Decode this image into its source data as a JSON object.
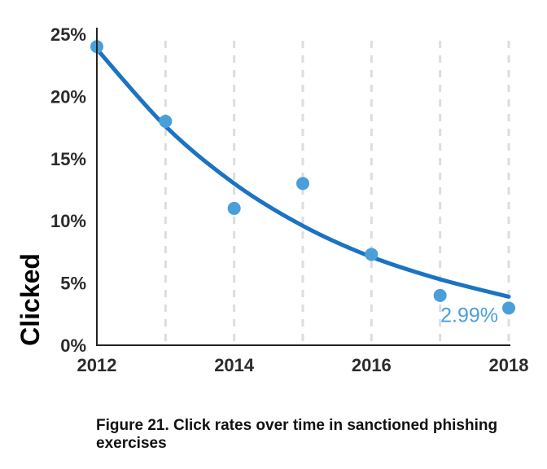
{
  "chart_data": {
    "type": "scatter",
    "x": [
      2012,
      2013,
      2014,
      2015,
      2016,
      2017,
      2018
    ],
    "y": [
      24.0,
      18.0,
      11.0,
      13.0,
      7.3,
      4.0,
      2.99
    ],
    "trendline": {
      "kind": "exponential",
      "x": [
        2012,
        2013,
        2014,
        2015,
        2016,
        2017,
        2018
      ],
      "y": [
        23.8,
        17.6,
        13.0,
        9.6,
        7.1,
        5.3,
        3.9
      ]
    },
    "xlabel": "",
    "ylabel": "Clicked",
    "xlim": [
      2012,
      2018
    ],
    "ylim": [
      0,
      25
    ],
    "xticks": [
      2012,
      2014,
      2016,
      2018
    ],
    "xtick_labels": [
      "2012",
      "2014",
      "2016",
      "2018"
    ],
    "yticks": [
      0,
      5,
      10,
      15,
      20,
      25
    ],
    "ytick_labels": [
      "0%",
      "5%",
      "10%",
      "15%",
      "20%",
      "25%"
    ],
    "annotation": {
      "text": "2.99%",
      "x": 2018,
      "y": 2.99
    },
    "grid": "vertical dashed",
    "legend": "none",
    "colors": {
      "points": "#4a9fd9",
      "trendline": "#1b73c2",
      "annotation": "#4a9fd9",
      "axis": "#222222",
      "grid": "#dddddd"
    }
  },
  "caption": "Figure 21.  Click rates over time in sanctioned phishing exercises"
}
